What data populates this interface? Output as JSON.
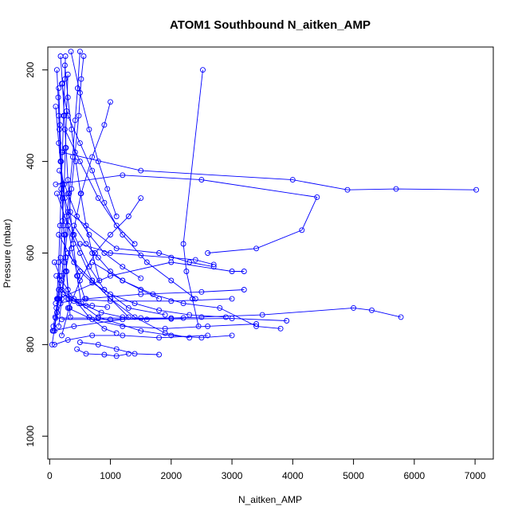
{
  "chart_data": {
    "type": "line",
    "title": "ATOM1 Southbound N_aitken_AMP",
    "xlabel": "N_aitken_AMP",
    "ylabel": "Pressure (mbar)",
    "xlim": [
      -30,
      7300
    ],
    "ylim": [
      1050,
      150
    ],
    "y_axis_reversed": true,
    "xticks": [
      0,
      1000,
      2000,
      3000,
      4000,
      5000,
      6000,
      7000
    ],
    "yticks": [
      200,
      400,
      600,
      800,
      1000
    ],
    "grid": false,
    "legend": "none",
    "marker": "open-circle",
    "series": [
      {
        "color": "#0000ff",
        "profiles": [
          [
            [
              50,
              770
            ],
            [
              180,
              710
            ],
            [
              260,
              640
            ],
            [
              380,
              560
            ],
            [
              520,
              470
            ],
            [
              700,
              390
            ],
            [
              900,
              320
            ],
            [
              1000,
              270
            ]
          ],
          [
            [
              150,
              760
            ],
            [
              200,
              700
            ],
            [
              240,
              620
            ],
            [
              300,
              540
            ],
            [
              360,
              460
            ],
            [
              420,
              380
            ],
            [
              480,
              300
            ],
            [
              520,
              220
            ],
            [
              560,
              170
            ]
          ],
          [
            [
              40,
              800
            ],
            [
              120,
              730
            ],
            [
              200,
              650
            ],
            [
              260,
              560
            ],
            [
              320,
              470
            ],
            [
              380,
              390
            ],
            [
              420,
              310
            ],
            [
              460,
              240
            ],
            [
              500,
              160
            ]
          ],
          [
            [
              120,
              700
            ],
            [
              150,
              620
            ],
            [
              170,
              540
            ],
            [
              190,
              460
            ],
            [
              210,
              380
            ],
            [
              230,
              300
            ],
            [
              250,
              220
            ],
            [
              260,
              170
            ]
          ],
          [
            [
              80,
              770
            ],
            [
              140,
              700
            ],
            [
              180,
              610
            ],
            [
              210,
              530
            ],
            [
              240,
              450
            ],
            [
              260,
              370
            ],
            [
              280,
              290
            ],
            [
              300,
              210
            ]
          ],
          [
            [
              200,
              780
            ],
            [
              320,
              720
            ],
            [
              500,
              660
            ],
            [
              750,
              600
            ],
            [
              1000,
              560
            ],
            [
              1300,
              520
            ],
            [
              1500,
              480
            ]
          ],
          [
            [
              2450,
              760
            ],
            [
              2350,
              700
            ],
            [
              2250,
              640
            ],
            [
              2200,
              580
            ],
            [
              2520,
              200
            ]
          ],
          [
            [
              60,
              770
            ],
            [
              400,
              760
            ],
            [
              1200,
              745
            ],
            [
              2500,
              740
            ],
            [
              3500,
              735
            ],
            [
              5000,
              720
            ],
            [
              5300,
              725
            ],
            [
              5780,
              740
            ]
          ],
          [
            [
              100,
              710
            ],
            [
              600,
              700
            ],
            [
              1500,
              690
            ],
            [
              2500,
              685
            ],
            [
              3200,
              680
            ]
          ],
          [
            [
              150,
              700
            ],
            [
              1000,
              650
            ],
            [
              2000,
              620
            ],
            [
              3000,
              640
            ],
            [
              3200,
              640
            ]
          ],
          [
            [
              200,
              380
            ],
            [
              1500,
              420
            ],
            [
              4000,
              440
            ],
            [
              4900,
              462
            ],
            [
              5700,
              460
            ],
            [
              7020,
              462
            ]
          ],
          [
            [
              100,
              450
            ],
            [
              1200,
              430
            ],
            [
              2500,
              440
            ],
            [
              4400,
              478
            ],
            [
              4150,
              550
            ],
            [
              3400,
              590
            ],
            [
              2600,
              600
            ]
          ],
          [
            [
              300,
              510
            ],
            [
              1100,
              590
            ],
            [
              1800,
              600
            ],
            [
              2300,
              620
            ],
            [
              2700,
              630
            ]
          ],
          [
            [
              200,
              680
            ],
            [
              800,
              740
            ],
            [
              1500,
              770
            ],
            [
              2000,
              780
            ],
            [
              2500,
              785
            ],
            [
              3000,
              780
            ]
          ],
          [
            [
              500,
              795
            ],
            [
              800,
              800
            ],
            [
              1100,
              810
            ],
            [
              1400,
              820
            ],
            [
              1800,
              822
            ]
          ],
          [
            [
              450,
              810
            ],
            [
              600,
              820
            ],
            [
              900,
              822
            ],
            [
              1100,
              825
            ],
            [
              1300,
              820
            ]
          ],
          [
            [
              300,
              720
            ],
            [
              700,
              745
            ],
            [
              1200,
              760
            ],
            [
              1900,
              765
            ],
            [
              2600,
              760
            ],
            [
              3400,
              755
            ]
          ],
          [
            [
              150,
              560
            ],
            [
              400,
              620
            ],
            [
              700,
              660
            ],
            [
              1000,
              700
            ],
            [
              1400,
              740
            ],
            [
              1900,
              775
            ],
            [
              2300,
              785
            ]
          ],
          [
            [
              120,
              470
            ],
            [
              300,
              540
            ],
            [
              500,
              600
            ],
            [
              700,
              660
            ],
            [
              1000,
              700
            ],
            [
              1300,
              740
            ]
          ],
          [
            [
              250,
              330
            ],
            [
              500,
              400
            ],
            [
              800,
              480
            ],
            [
              1200,
              560
            ],
            [
              1600,
              620
            ],
            [
              2000,
              660
            ],
            [
              2400,
              700
            ]
          ],
          [
            [
              80,
              800
            ],
            [
              300,
              790
            ],
            [
              700,
              780
            ],
            [
              1200,
              780
            ],
            [
              1800,
              785
            ],
            [
              2600,
              780
            ]
          ],
          [
            [
              200,
              745
            ],
            [
              1000,
              745
            ],
            [
              2000,
              744
            ],
            [
              3000,
              743
            ],
            [
              3900,
              748
            ]
          ],
          [
            [
              100,
              742
            ],
            [
              800,
              742
            ],
            [
              1500,
              742
            ],
            [
              2200,
              742
            ]
          ],
          [
            [
              300,
              700
            ],
            [
              1000,
              705
            ],
            [
              2000,
              705
            ],
            [
              3000,
              700
            ]
          ],
          [
            [
              200,
              230
            ],
            [
              300,
              300
            ],
            [
              500,
              360
            ],
            [
              700,
              420
            ],
            [
              900,
              490
            ],
            [
              1100,
              540
            ],
            [
              1400,
              580
            ]
          ],
          [
            [
              350,
              160
            ],
            [
              500,
              250
            ],
            [
              650,
              330
            ],
            [
              800,
              400
            ],
            [
              950,
              460
            ],
            [
              1100,
              520
            ]
          ],
          [
            [
              150,
              300
            ],
            [
              180,
              400
            ],
            [
              250,
              480
            ],
            [
              400,
              560
            ],
            [
              650,
              630
            ],
            [
              900,
              680
            ],
            [
              1300,
              720
            ],
            [
              1900,
              735
            ]
          ],
          [
            [
              80,
              620
            ],
            [
              200,
              660
            ],
            [
              400,
              700
            ],
            [
              650,
              740
            ],
            [
              900,
              765
            ],
            [
              1100,
              775
            ]
          ],
          [
            [
              220,
              690
            ],
            [
              400,
              705
            ],
            [
              600,
              715
            ],
            [
              850,
              730
            ],
            [
              1200,
              740
            ],
            [
              1600,
              745
            ],
            [
              2000,
              742
            ]
          ],
          [
            [
              100,
              280
            ],
            [
              150,
              360
            ],
            [
              210,
              450
            ],
            [
              280,
              520
            ],
            [
              360,
              590
            ],
            [
              460,
              650
            ],
            [
              580,
              700
            ]
          ],
          [
            [
              300,
              600
            ],
            [
              500,
              640
            ],
            [
              700,
              665
            ],
            [
              1000,
              690
            ],
            [
              1400,
              710
            ],
            [
              1800,
              725
            ],
            [
              2300,
              735
            ],
            [
              2900,
              740
            ]
          ],
          [
            [
              160,
              420
            ],
            [
              300,
              470
            ],
            [
              450,
              520
            ],
            [
              650,
              560
            ],
            [
              900,
              600
            ],
            [
              1200,
              630
            ],
            [
              1500,
              655
            ]
          ],
          [
            [
              60,
              760
            ],
            [
              90,
              740
            ],
            [
              110,
              720
            ],
            [
              130,
              700
            ],
            [
              150,
              680
            ],
            [
              170,
              650
            ]
          ],
          [
            [
              400,
              540
            ],
            [
              600,
              580
            ],
            [
              800,
              610
            ],
            [
              1000,
              640
            ],
            [
              1200,
              660
            ],
            [
              1500,
              680
            ],
            [
              1800,
              700
            ]
          ],
          [
            [
              120,
              200
            ],
            [
              140,
              260
            ],
            [
              160,
              330
            ],
            [
              180,
              400
            ],
            [
              200,
              470
            ],
            [
              230,
              540
            ],
            [
              260,
              610
            ],
            [
              300,
              680
            ],
            [
              340,
              740
            ]
          ],
          [
            [
              180,
              170
            ],
            [
              210,
              230
            ],
            [
              240,
              300
            ],
            [
              270,
              370
            ],
            [
              300,
              440
            ],
            [
              340,
              510
            ],
            [
              390,
              580
            ],
            [
              450,
              650
            ],
            [
              520,
              710
            ]
          ],
          [
            [
              250,
              190
            ],
            [
              300,
              260
            ],
            [
              360,
              330
            ],
            [
              430,
              400
            ],
            [
              510,
              470
            ],
            [
              600,
              540
            ],
            [
              700,
              600
            ],
            [
              820,
              660
            ]
          ],
          [
            [
              500,
              580
            ],
            [
              1000,
              600
            ],
            [
              1500,
              605
            ],
            [
              2000,
              610
            ],
            [
              2400,
              615
            ],
            [
              2700,
              625
            ]
          ],
          [
            [
              700,
              620
            ],
            [
              1200,
              660
            ],
            [
              1700,
              690
            ],
            [
              2200,
              710
            ],
            [
              2800,
              720
            ],
            [
              3400,
              760
            ],
            [
              3800,
              765
            ]
          ],
          [
            [
              150,
              240
            ],
            [
              170,
              320
            ],
            [
              190,
              400
            ],
            [
              210,
              480
            ],
            [
              240,
              560
            ],
            [
              280,
              640
            ],
            [
              330,
              720
            ]
          ],
          [
            [
              110,
              650
            ],
            [
              200,
              680
            ],
            [
              320,
              700
            ],
            [
              480,
              710
            ],
            [
              700,
              715
            ],
            [
              950,
              718
            ]
          ]
        ]
      }
    ]
  }
}
